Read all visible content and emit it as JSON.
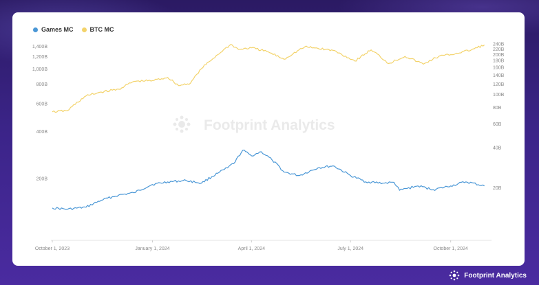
{
  "colors": {
    "games": "#4a97d6",
    "btc": "#f3d36b",
    "watermark": "#d9d9d9",
    "axis_text": "#888888"
  },
  "watermark_text": "Footprint Analytics",
  "brand_text": "Footprint Analytics",
  "chart_data": {
    "type": "line",
    "legend_position": "top-left",
    "grid": false,
    "x_start": "2023-10-01",
    "x_end": "2024-11-05",
    "x_tick_labels": [
      {
        "date": "2023-10-01",
        "label": "October 1, 2023"
      },
      {
        "date": "2024-01-01",
        "label": "January 1, 2024"
      },
      {
        "date": "2024-04-01",
        "label": "April 1, 2024"
      },
      {
        "date": "2024-07-01",
        "label": "July 1, 2024"
      },
      {
        "date": "2024-10-01",
        "label": "October 1, 2024"
      }
    ],
    "y_left": {
      "scale": "log",
      "range": [
        80,
        1500
      ],
      "ticks": [
        {
          "value": 200,
          "label": "200B"
        },
        {
          "value": 400,
          "label": "400B"
        },
        {
          "value": 600,
          "label": "600B"
        },
        {
          "value": 800,
          "label": "800B"
        },
        {
          "value": 1000,
          "label": "1,000B"
        },
        {
          "value": 1200,
          "label": "1,200B"
        },
        {
          "value": 1400,
          "label": "1,400B"
        }
      ]
    },
    "y_right": {
      "scale": "log",
      "range": [
        8,
        250
      ],
      "ticks": [
        {
          "value": 20,
          "label": "20B"
        },
        {
          "value": 40,
          "label": "40B"
        },
        {
          "value": 60,
          "label": "60B"
        },
        {
          "value": 80,
          "label": "80B"
        },
        {
          "value": 100,
          "label": "100B"
        },
        {
          "value": 120,
          "label": "120B"
        },
        {
          "value": 140,
          "label": "140B"
        },
        {
          "value": 160,
          "label": "160B"
        },
        {
          "value": 180,
          "label": "180B"
        },
        {
          "value": 200,
          "label": "200B"
        },
        {
          "value": 220,
          "label": "220B"
        },
        {
          "value": 240,
          "label": "240B"
        }
      ]
    },
    "series": [
      {
        "name": "Games MC",
        "axis": "right",
        "points": [
          [
            "2023-10-01",
            14
          ],
          [
            "2023-10-15",
            13.7
          ],
          [
            "2023-11-01",
            14.2
          ],
          [
            "2023-11-15",
            16
          ],
          [
            "2023-12-01",
            17.5
          ],
          [
            "2023-12-15",
            18.2
          ],
          [
            "2024-01-01",
            21
          ],
          [
            "2024-01-15",
            22
          ],
          [
            "2024-02-01",
            22.5
          ],
          [
            "2024-02-15",
            21.5
          ],
          [
            "2024-03-01",
            25.5
          ],
          [
            "2024-03-10",
            28
          ],
          [
            "2024-03-17",
            31
          ],
          [
            "2024-03-24",
            38
          ],
          [
            "2024-04-01",
            34.5
          ],
          [
            "2024-04-10",
            37
          ],
          [
            "2024-04-20",
            32
          ],
          [
            "2024-05-01",
            26
          ],
          [
            "2024-05-15",
            24.5
          ],
          [
            "2024-06-01",
            28
          ],
          [
            "2024-06-15",
            29
          ],
          [
            "2024-07-01",
            24.5
          ],
          [
            "2024-07-15",
            22
          ],
          [
            "2024-08-01",
            21.5
          ],
          [
            "2024-08-10",
            21.8
          ],
          [
            "2024-08-15",
            19
          ],
          [
            "2024-09-01",
            20.5
          ],
          [
            "2024-09-15",
            19.2
          ],
          [
            "2024-10-01",
            20.5
          ],
          [
            "2024-10-15",
            22
          ],
          [
            "2024-11-01",
            20.5
          ]
        ]
      },
      {
        "name": "BTC MC",
        "axis": "left",
        "points": [
          [
            "2023-10-01",
            530
          ],
          [
            "2023-10-15",
            540
          ],
          [
            "2023-11-01",
            670
          ],
          [
            "2023-11-15",
            710
          ],
          [
            "2023-12-01",
            740
          ],
          [
            "2023-12-15",
            830
          ],
          [
            "2024-01-01",
            840
          ],
          [
            "2024-01-15",
            880
          ],
          [
            "2024-01-25",
            780
          ],
          [
            "2024-02-05",
            810
          ],
          [
            "2024-02-15",
            1000
          ],
          [
            "2024-03-01",
            1230
          ],
          [
            "2024-03-13",
            1430
          ],
          [
            "2024-03-20",
            1330
          ],
          [
            "2024-04-01",
            1360
          ],
          [
            "2024-04-15",
            1290
          ],
          [
            "2024-05-01",
            1150
          ],
          [
            "2024-05-20",
            1380
          ],
          [
            "2024-06-01",
            1350
          ],
          [
            "2024-06-15",
            1310
          ],
          [
            "2024-07-05",
            1120
          ],
          [
            "2024-07-20",
            1320
          ],
          [
            "2024-08-05",
            1080
          ],
          [
            "2024-08-20",
            1200
          ],
          [
            "2024-09-06",
            1070
          ],
          [
            "2024-09-20",
            1200
          ],
          [
            "2024-10-01",
            1230
          ],
          [
            "2024-10-20",
            1320
          ],
          [
            "2024-11-01",
            1420
          ]
        ]
      }
    ]
  }
}
